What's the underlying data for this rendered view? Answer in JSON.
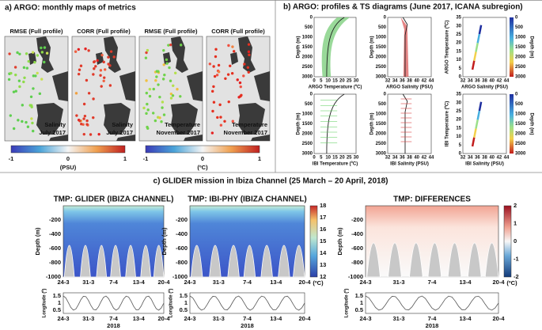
{
  "panel_a": {
    "title": "a) ARGO: monthly maps of metrics",
    "maps": [
      {
        "title": "RMSE (Full profile)",
        "label": [
          "Salinity",
          "July 2017"
        ]
      },
      {
        "title": "CORR (Full profile)",
        "label": [
          "Salinity",
          "July 2017"
        ]
      },
      {
        "title": "RMSE (Full profile)",
        "label": [
          "Temperature",
          "November 2017"
        ]
      },
      {
        "title": "CORR (Full profile)",
        "label": [
          "Temperature",
          "November 2017"
        ]
      }
    ],
    "colorbars": [
      {
        "ticks": [
          "-1",
          "0",
          "1"
        ],
        "unit": "(PSU)"
      },
      {
        "ticks": [
          "-1",
          "0",
          "1"
        ],
        "unit": "(ºC)"
      }
    ]
  },
  "panel_b": {
    "title": "b) ARGO: profiles & TS diagrams (June 2017, ICANA subregion)",
    "plots": [
      {
        "xlabel": "ARGO Temperature (ºC)",
        "ylabel": "Depth (m)",
        "xticks": [
          "0",
          "5",
          "10",
          "15",
          "20",
          "25",
          "30"
        ],
        "yticks": [
          "0",
          "500",
          "1000",
          "1500",
          "2000",
          "2500",
          "3000"
        ]
      },
      {
        "xlabel": "ARGO Salinity (PSU)",
        "ylabel": "Depth (m)",
        "xticks": [
          "32",
          "34",
          "36",
          "38",
          "40",
          "42",
          "44"
        ],
        "yticks": [
          "0",
          "500",
          "1000",
          "1500",
          "2000",
          "2500",
          "3000"
        ]
      },
      {
        "xlabel": "ARGO Salinity (PSU)",
        "ylabel": "ARGO Temperature (ºC)",
        "xticks": [
          "32",
          "34",
          "36",
          "38",
          "40",
          "42",
          "44"
        ],
        "yticks": [
          "35",
          "30",
          "25",
          "20",
          "15",
          "10",
          "5",
          "0"
        ]
      },
      {
        "xlabel": "IBI Temperature (ºC)",
        "ylabel": "Depth (m)",
        "xticks": [
          "0",
          "5",
          "10",
          "15",
          "20",
          "25",
          "30"
        ],
        "yticks": [
          "0",
          "500",
          "1000",
          "1500",
          "2000",
          "2500",
          "3000"
        ]
      },
      {
        "xlabel": "IBI Salinity (PSU)",
        "ylabel": "Depth (m)",
        "xticks": [
          "32",
          "34",
          "36",
          "38",
          "40",
          "42",
          "44"
        ],
        "yticks": [
          "0",
          "500",
          "1000",
          "1500",
          "2000",
          "2500",
          "3000"
        ]
      },
      {
        "xlabel": "IBI Salinity (PSU)",
        "ylabel": "IBI Temperature (ºC)",
        "xticks": [
          "32",
          "34",
          "36",
          "38",
          "40",
          "42",
          "44"
        ],
        "yticks": [
          "35",
          "30",
          "25",
          "20",
          "15",
          "10",
          "5",
          "0"
        ]
      }
    ],
    "depth_colorbar": {
      "label": "Depth (m)",
      "ticks": [
        "0",
        "500",
        "1000",
        "1500",
        "2000",
        "2500",
        "3000"
      ]
    }
  },
  "panel_c": {
    "title": "c) GLIDER mission in Ibiza Channel (25 March – 20 April, 2018)",
    "plots": [
      {
        "title": "TMP: GLIDER (IBIZA CHANNEL)"
      },
      {
        "title": "TMP: IBI-PHY (IBIZA CHANNEL)"
      },
      {
        "title": "TMP: DIFFERENCES"
      }
    ],
    "depth_label": "Depth (m)",
    "depth_ticks": [
      "-200",
      "-400",
      "-600",
      "-800",
      "-1000"
    ],
    "date_ticks": [
      "24-3",
      "31-3",
      "7-4",
      "13-4",
      "20-4"
    ],
    "year": "2018",
    "longitude_label": "Longitude (º)",
    "longitude_ticks": [
      "1.5",
      "1",
      "0.5"
    ],
    "temp_colorbar": {
      "ticks": [
        "18",
        "17",
        "16",
        "15",
        "14",
        "13",
        "12"
      ],
      "unit": "(ºC)"
    },
    "diff_colorbar": {
      "ticks": [
        "2",
        "1",
        "0",
        "-1",
        "-2"
      ],
      "unit": "(ºC)"
    }
  }
}
